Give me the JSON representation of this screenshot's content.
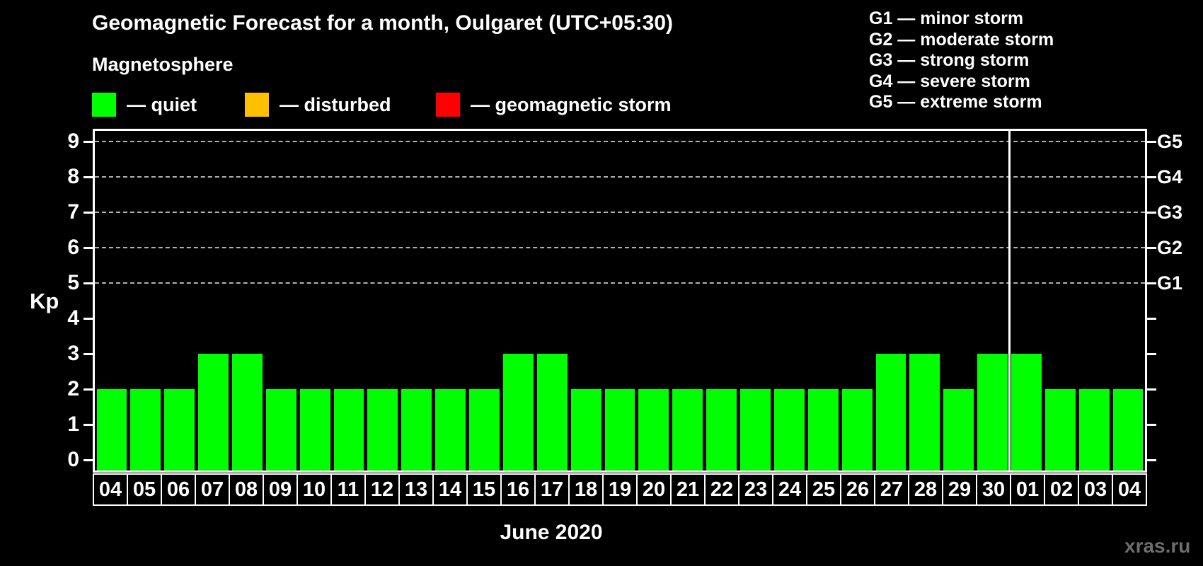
{
  "header": {
    "title": "Geomagnetic Forecast for a month, Oulgaret (UTC+05:30)"
  },
  "legend": {
    "heading": "Magnetosphere",
    "items": [
      {
        "name": "quiet",
        "label": "— quiet",
        "color": "#00ff00"
      },
      {
        "name": "disturbed",
        "label": "— disturbed",
        "color": "#ffc000"
      },
      {
        "name": "storm",
        "label": "— geomagnetic storm",
        "color": "#ff0000"
      }
    ]
  },
  "storm_scale": [
    {
      "label": "G1 — minor storm"
    },
    {
      "label": "G2 — moderate storm"
    },
    {
      "label": "G3 — strong storm"
    },
    {
      "label": "G4 — severe storm"
    },
    {
      "label": "G5 — extreme storm"
    }
  ],
  "axis": {
    "kp_label": "Kp"
  },
  "chart_data": {
    "type": "bar",
    "title": "Geomagnetic Forecast for a month, Oulgaret (UTC+05:30)",
    "xlabel": "June 2020",
    "ylabel": "Kp",
    "ylim": [
      0,
      9
    ],
    "yticks": [
      0,
      1,
      2,
      3,
      4,
      5,
      6,
      7,
      8,
      9
    ],
    "gridlines_at": [
      5,
      6,
      7,
      8,
      9
    ],
    "grid": "dashed horizontal at G-levels only",
    "legend_position": "top-left",
    "right_axis_labels": [
      {
        "value": 5,
        "label": "G1"
      },
      {
        "value": 6,
        "label": "G2"
      },
      {
        "value": 7,
        "label": "G3"
      },
      {
        "value": 8,
        "label": "G4"
      },
      {
        "value": 9,
        "label": "G5"
      }
    ],
    "categories": [
      "04",
      "05",
      "06",
      "07",
      "08",
      "09",
      "10",
      "11",
      "12",
      "13",
      "14",
      "15",
      "16",
      "17",
      "18",
      "19",
      "20",
      "21",
      "22",
      "23",
      "24",
      "25",
      "26",
      "27",
      "28",
      "29",
      "30",
      "01",
      "02",
      "03",
      "04"
    ],
    "values": [
      2,
      2,
      2,
      3,
      3,
      2,
      2,
      2,
      2,
      2,
      2,
      2,
      3,
      3,
      2,
      2,
      2,
      2,
      2,
      2,
      2,
      2,
      2,
      3,
      3,
      2,
      3,
      3,
      2,
      2,
      2
    ],
    "month_separator_after_index": 26,
    "colors": {
      "quiet": "#00ff00",
      "disturbed": "#ffc000",
      "storm": "#ff0000"
    },
    "grid_color": "#b0b0b0",
    "axis_color": "#ffffff",
    "background_color": "#000000"
  },
  "footer": {
    "month_label": "June 2020",
    "watermark": "xras.ru"
  }
}
